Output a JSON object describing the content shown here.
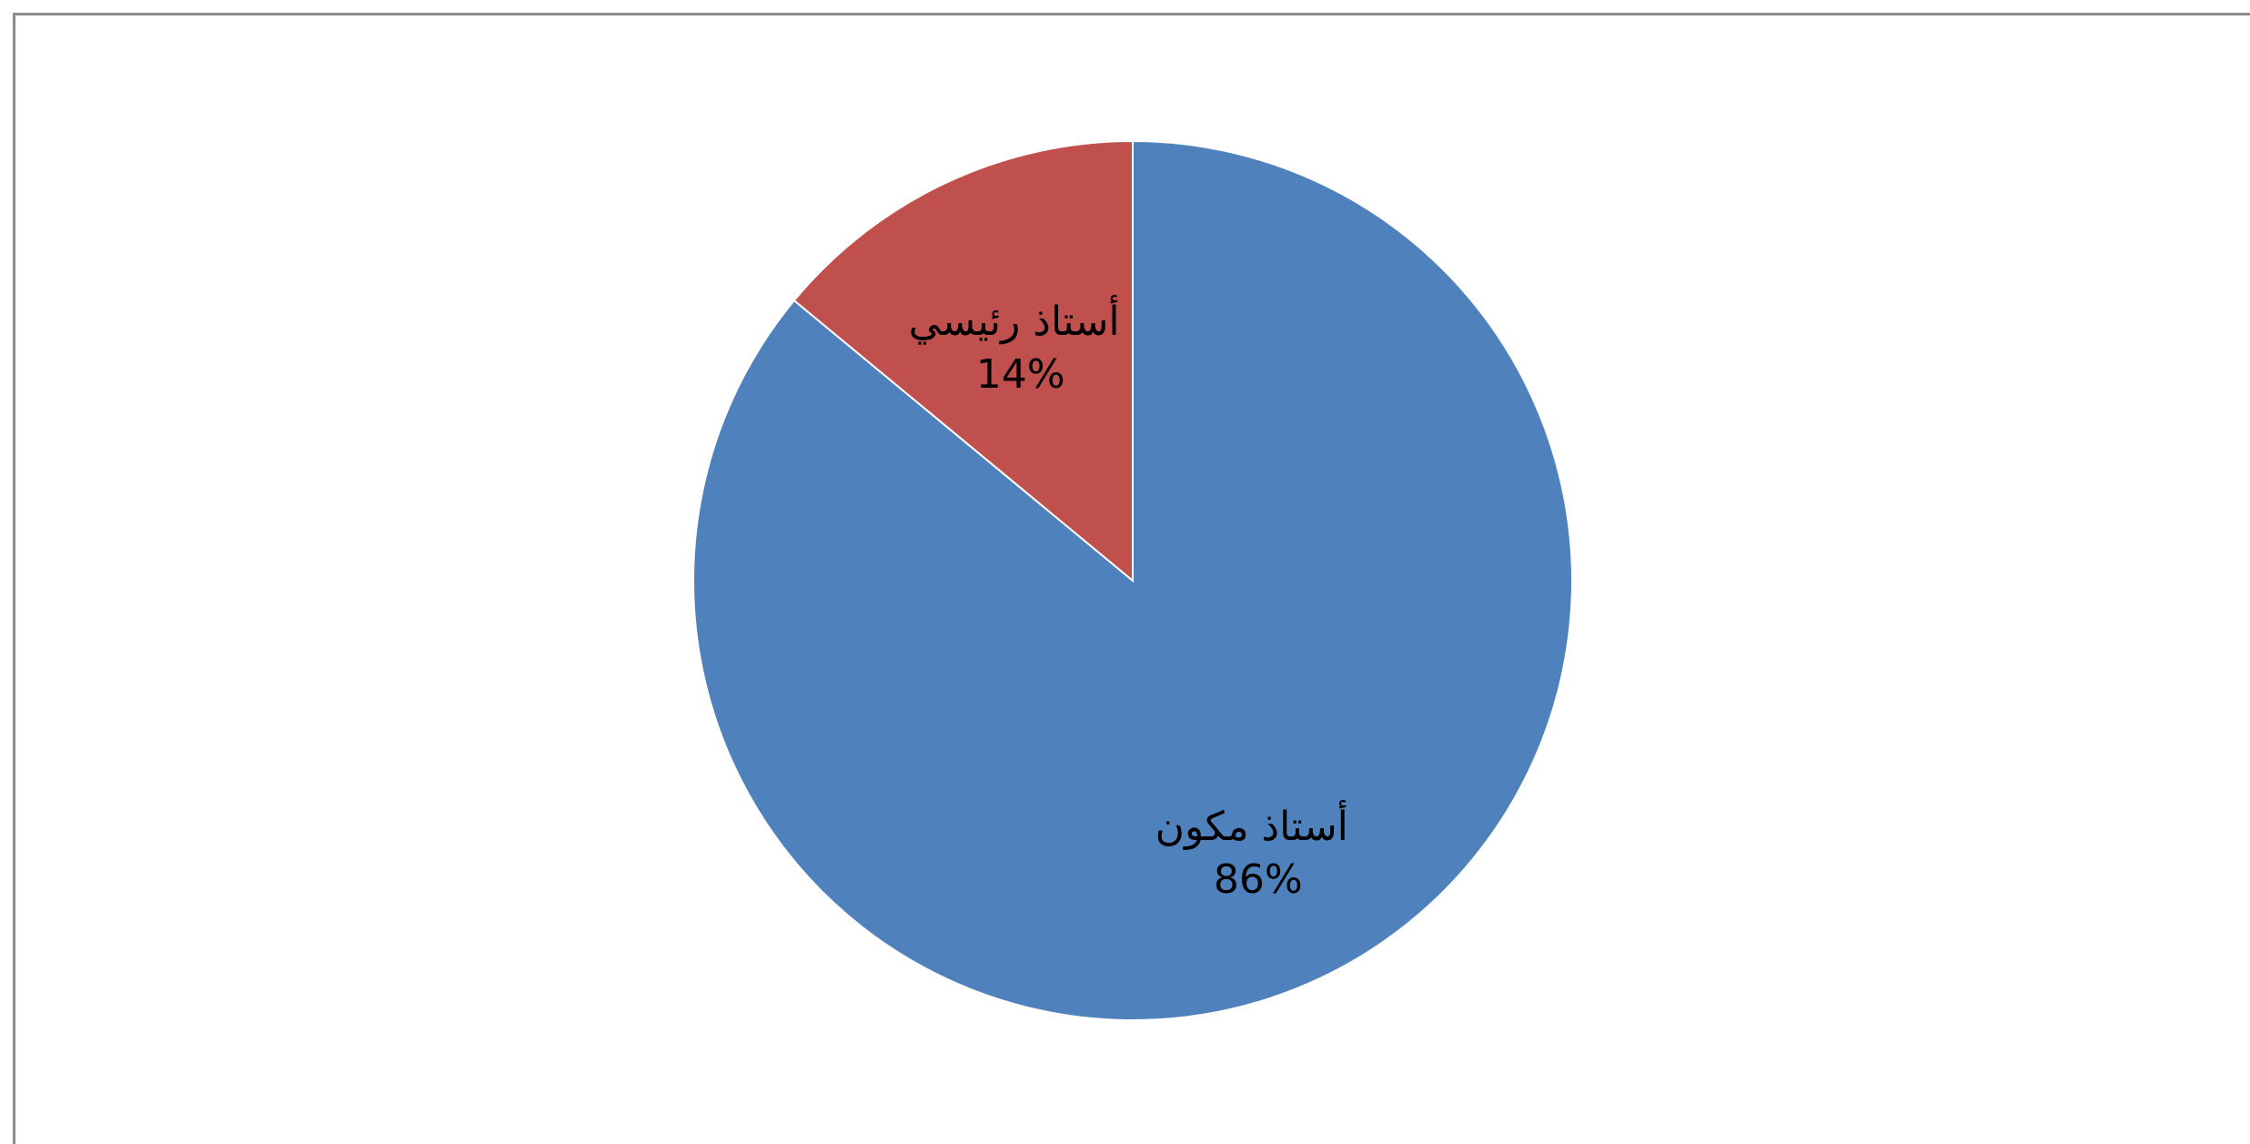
{
  "chart_data": {
    "type": "pie",
    "title": "",
    "categories": [
      "أستاذ مكون",
      "أستاذ رئيسي"
    ],
    "values": [
      86,
      14
    ],
    "value_labels": [
      "86%",
      "14%"
    ],
    "colors": [
      "#4F81BD",
      "#C0504D"
    ],
    "start_angle_deg": 0,
    "direction": "clockwise",
    "legend": "none",
    "data_labels": "inside"
  }
}
